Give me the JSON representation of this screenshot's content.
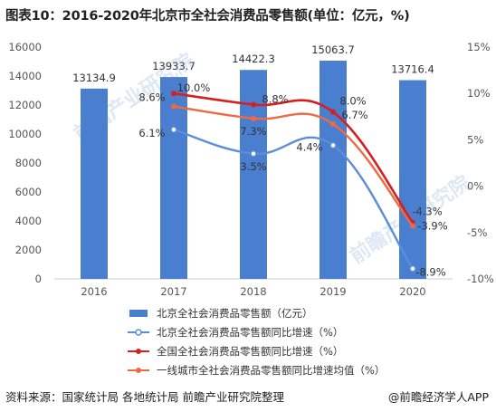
{
  "title": "图表10：2016-2020年北京市全社会消费品零售额(单位：亿元，%)",
  "source": "资料来源：国家统计局 各地统计局 前瞻产业研究院整理",
  "logo_text": "@前瞻经济学人APP",
  "watermark": "前瞻产业研究院",
  "colors": {
    "bar": "#4a7fd0",
    "beijing_growth": "#5b8ed6",
    "national_growth": "#d42020",
    "tier1_growth": "#ee6a44",
    "axis_text": "#555555",
    "gridline": "#dddddd"
  },
  "chart_data": {
    "type": "bar",
    "categories": [
      "2016",
      "2017",
      "2018",
      "2019",
      "2020"
    ],
    "left_axis": {
      "ylim": [
        0,
        16000
      ],
      "ticks": [
        "0",
        "2000",
        "4000",
        "6000",
        "8000",
        "10000",
        "12000",
        "14000",
        "16000"
      ]
    },
    "right_axis": {
      "ylim": [
        -10,
        15
      ],
      "ticks": [
        "-10%",
        "-5%",
        "0%",
        "5%",
        "10%",
        "15%"
      ]
    },
    "bars": {
      "name": "北京全社会消费品零售额（亿元）",
      "values": [
        13134.9,
        13933.7,
        14422.3,
        15063.7,
        13716.4
      ],
      "labels": [
        "13134.9",
        "13933.7",
        "14422.3",
        "15063.7",
        "13716.4"
      ]
    },
    "lines": [
      {
        "name": "北京全社会消费品零售额同比增速（%）",
        "key": "beijing_growth",
        "x": [
          "2017",
          "2018",
          "2019",
          "2020"
        ],
        "values": [
          6.1,
          3.5,
          4.4,
          -8.9
        ],
        "labels": [
          "6.1%",
          "3.5%",
          "4.4%",
          "-8.9%"
        ]
      },
      {
        "name": "全国全社会消费品零售额同比增速（%）",
        "key": "national_growth",
        "x": [
          "2017",
          "2018",
          "2019",
          "2020"
        ],
        "values": [
          10.0,
          8.8,
          8.0,
          -3.9
        ],
        "labels": [
          "10.0%",
          "8.8%",
          "8.0%",
          "-3.9%"
        ]
      },
      {
        "name": "一线城市全社会消费品零售额同比增速均值（%）",
        "key": "tier1_growth",
        "x": [
          "2017",
          "2018",
          "2019",
          "2020"
        ],
        "values": [
          8.6,
          7.3,
          6.7,
          -4.3
        ],
        "labels": [
          "8.6%",
          "7.3%",
          "6.7%",
          "-4.3%"
        ]
      }
    ],
    "legend_position": "bottom"
  }
}
